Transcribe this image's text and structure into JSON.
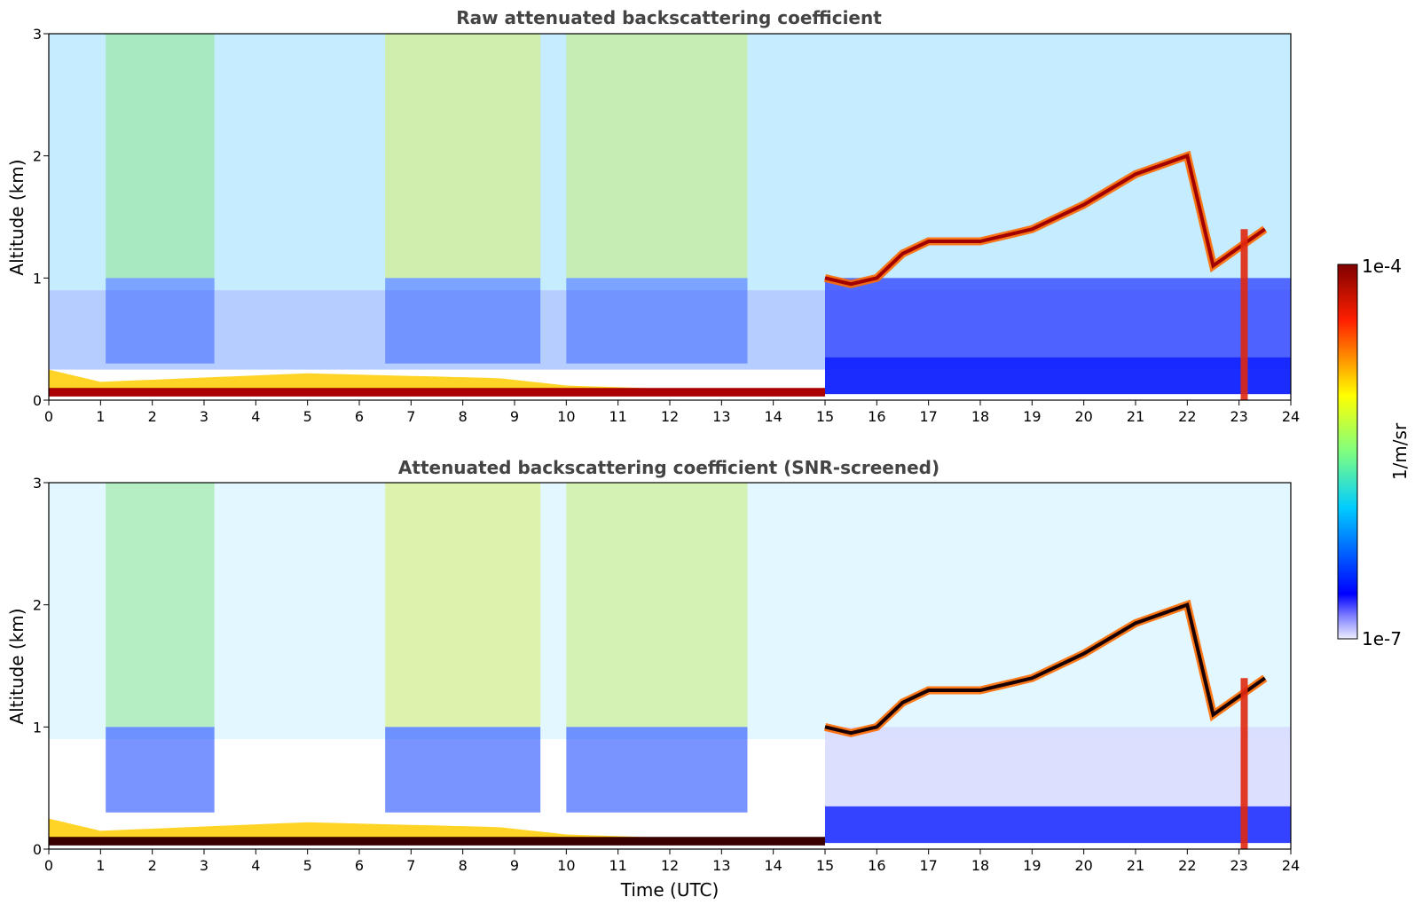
{
  "chart_data": [
    {
      "type": "heatmap",
      "title": "Raw attenuated backscattering coefficient",
      "ylabel": "Altitude (km)",
      "xlabel": "",
      "xlim": [
        0,
        24
      ],
      "ylim": [
        0,
        3
      ],
      "x_ticks": [
        0,
        1,
        2,
        3,
        4,
        5,
        6,
        7,
        8,
        9,
        10,
        11,
        12,
        13,
        14,
        15,
        16,
        17,
        18,
        19,
        20,
        21,
        22,
        23,
        24
      ],
      "y_ticks": [
        0,
        1,
        2,
        3
      ],
      "features": {
        "surface_layer_top_km": 0.1,
        "boundary_layer": [
          {
            "t": 0,
            "top_km": 0.25
          },
          {
            "t": 1,
            "top_km": 0.15
          },
          {
            "t": 5,
            "top_km": 0.22
          },
          {
            "t": 8.7,
            "top_km": 0.18
          },
          {
            "t": 10,
            "top_km": 0.12
          },
          {
            "t": 15,
            "top_km": 0.05
          }
        ],
        "cloud_layer": [
          {
            "t": 15.0,
            "alt_km": 1.0
          },
          {
            "t": 15.5,
            "alt_km": 0.95
          },
          {
            "t": 16.0,
            "alt_km": 1.0
          },
          {
            "t": 16.5,
            "alt_km": 1.2
          },
          {
            "t": 17.0,
            "alt_km": 1.3
          },
          {
            "t": 18.0,
            "alt_km": 1.3
          },
          {
            "t": 19.0,
            "alt_km": 1.4
          },
          {
            "t": 20.0,
            "alt_km": 1.6
          },
          {
            "t": 21.0,
            "alt_km": 1.85
          },
          {
            "t": 22.0,
            "alt_km": 2.0
          },
          {
            "t": 22.5,
            "alt_km": 1.1
          },
          {
            "t": 23.5,
            "alt_km": 1.4
          }
        ],
        "precipitation_time_utc": 23.1
      }
    },
    {
      "type": "heatmap",
      "title": "Attenuated backscattering coefficient (SNR-screened)",
      "ylabel": "Altitude (km)",
      "xlabel": "Time (UTC)",
      "xlim": [
        0,
        24
      ],
      "ylim": [
        0,
        3
      ],
      "x_ticks": [
        0,
        1,
        2,
        3,
        4,
        5,
        6,
        7,
        8,
        9,
        10,
        11,
        12,
        13,
        14,
        15,
        16,
        17,
        18,
        19,
        20,
        21,
        22,
        23,
        24
      ],
      "y_ticks": [
        0,
        1,
        2,
        3
      ],
      "features": {
        "surface_layer_top_km": 0.1,
        "boundary_layer": [
          {
            "t": 0,
            "top_km": 0.25
          },
          {
            "t": 1,
            "top_km": 0.15
          },
          {
            "t": 5,
            "top_km": 0.22
          },
          {
            "t": 8.7,
            "top_km": 0.18
          },
          {
            "t": 10,
            "top_km": 0.12
          },
          {
            "t": 15,
            "top_km": 0.05
          }
        ],
        "cloud_layer": [
          {
            "t": 15.0,
            "alt_km": 1.0
          },
          {
            "t": 15.5,
            "alt_km": 0.95
          },
          {
            "t": 16.0,
            "alt_km": 1.0
          },
          {
            "t": 16.5,
            "alt_km": 1.2
          },
          {
            "t": 17.0,
            "alt_km": 1.3
          },
          {
            "t": 18.0,
            "alt_km": 1.3
          },
          {
            "t": 19.0,
            "alt_km": 1.4
          },
          {
            "t": 20.0,
            "alt_km": 1.6
          },
          {
            "t": 21.0,
            "alt_km": 1.85
          },
          {
            "t": 22.0,
            "alt_km": 2.0
          },
          {
            "t": 22.5,
            "alt_km": 1.1
          },
          {
            "t": 23.5,
            "alt_km": 1.4
          }
        ],
        "precipitation_time_utc": 23.1
      }
    }
  ],
  "colorbar": {
    "label": "1/m/sr",
    "max_label": "1e-4",
    "min_label": "1e-7",
    "scale": "log",
    "colormap": "jet",
    "colors": [
      "#eeeeff",
      "#0000ff",
      "#00ccff",
      "#7fff7f",
      "#ffff00",
      "#ff4000",
      "#800000"
    ]
  }
}
